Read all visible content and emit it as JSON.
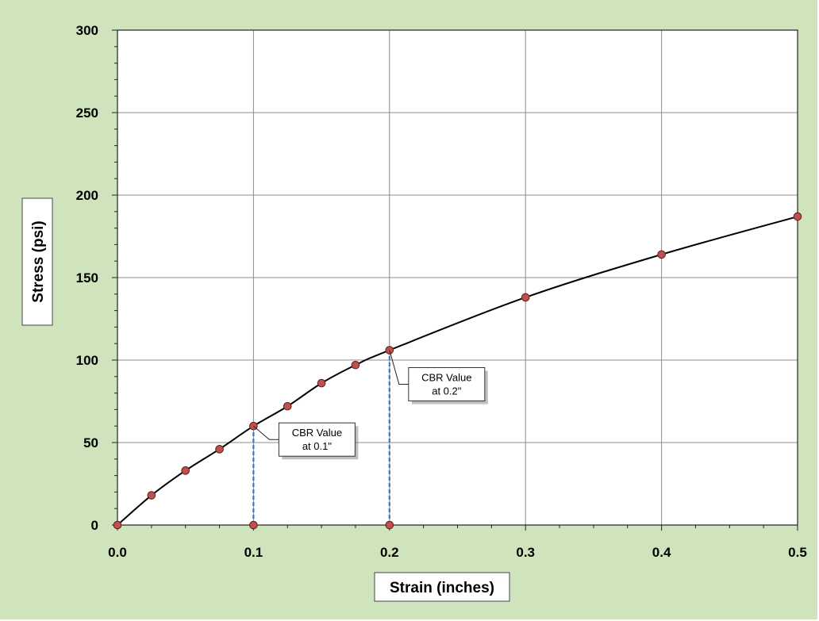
{
  "chart_data": {
    "type": "line",
    "xlabel": "Strain (inches)",
    "ylabel": "Stress (psi)",
    "xlim": [
      0,
      0.5
    ],
    "ylim": [
      0,
      300
    ],
    "x_ticks": [
      "0.0",
      "0.1",
      "0.2",
      "0.3",
      "0.4",
      "0.5"
    ],
    "y_ticks": [
      "0",
      "50",
      "100",
      "150",
      "200",
      "250",
      "300"
    ],
    "grid": true,
    "series": [
      {
        "marker": "circle",
        "line_color": "#000000",
        "marker_color": "#c0504d",
        "x": [
          0,
          0.025,
          0.05,
          0.075,
          0.1,
          0.125,
          0.15,
          0.175,
          0.2,
          0.3,
          0.4,
          0.5
        ],
        "y": [
          0,
          18,
          33,
          46,
          60,
          72,
          86,
          97,
          106,
          138,
          164,
          187
        ]
      }
    ],
    "reference_lines": [
      {
        "x": 0.1,
        "y_top": 60,
        "color": "#2e7bd6",
        "style": "dashed"
      },
      {
        "x": 0.2,
        "y_top": 106,
        "color": "#2e7bd6",
        "style": "dashed"
      }
    ],
    "reference_markers": [
      {
        "x": 0.1,
        "y": 0
      },
      {
        "x": 0.2,
        "y": 0
      }
    ],
    "annotations": [
      {
        "lines": [
          "CBR Value",
          "at 0.1\""
        ],
        "target_x": 0.1,
        "target_y": 60
      },
      {
        "lines": [
          "CBR Value",
          "at 0.2\""
        ],
        "target_x": 0.2,
        "target_y": 106
      }
    ]
  },
  "colors": {
    "background": "#cfe3bd",
    "plot_area": "#ffffff",
    "gridline": "#8c8c8c",
    "reference_line": "#2e7bd6",
    "marker_fill": "#c0504d"
  }
}
